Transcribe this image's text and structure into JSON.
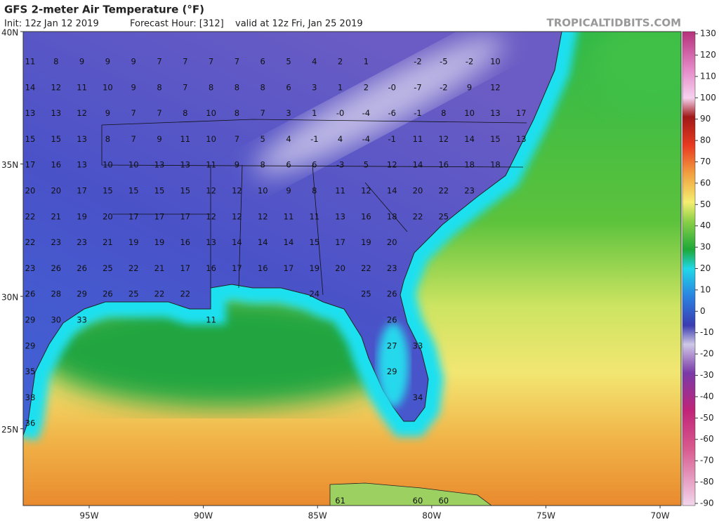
{
  "header": {
    "title": "GFS 2-meter Air Temperature (°F)",
    "init": "Init: 12z Jan 12 2019",
    "forecast_hour": "Forecast Hour: [312]",
    "valid": "valid at 12z Fri, Jan 25 2019",
    "watermark": "TROPICALTIDBITS.COM"
  },
  "map": {
    "lat_range": [
      22.1,
      40
    ],
    "lon_range": [
      -97.89,
      -69.08
    ],
    "lat_ticks": [
      {
        "value": 40,
        "label": "40N"
      },
      {
        "value": 35,
        "label": "35N"
      },
      {
        "value": 30,
        "label": "30N"
      },
      {
        "value": 25,
        "label": "25N"
      }
    ],
    "lon_ticks": [
      {
        "value": -95,
        "label": "95W"
      },
      {
        "value": -90,
        "label": "90W"
      },
      {
        "value": -85,
        "label": "85W"
      },
      {
        "value": -80,
        "label": "80W"
      },
      {
        "value": -75,
        "label": "75W"
      },
      {
        "value": -70,
        "label": "70W"
      }
    ],
    "labels": [
      [
        "11",
        "8",
        "9",
        "9",
        "9",
        "7",
        "7",
        "7",
        "7",
        "6",
        "5",
        "4",
        "2",
        "1",
        null,
        "-2",
        "-5",
        "-2",
        "10"
      ],
      [
        "14",
        "12",
        "11",
        "10",
        "9",
        "8",
        "7",
        "8",
        "8",
        "8",
        "6",
        "3",
        "1",
        "2",
        "-0",
        "-7",
        "-2",
        "9",
        "12"
      ],
      [
        "13",
        "13",
        "12",
        "9",
        "7",
        "7",
        "8",
        "10",
        "8",
        "7",
        "3",
        "1",
        "-0",
        "-4",
        "-6",
        "-1",
        "8",
        "10",
        "13",
        "17"
      ],
      [
        "15",
        "15",
        "13",
        "8",
        "7",
        "9",
        "11",
        "10",
        "7",
        "5",
        "4",
        "-1",
        "4",
        "-4",
        "-1",
        "11",
        "12",
        "14",
        "15",
        "13"
      ],
      [
        "17",
        "16",
        "13",
        "10",
        "10",
        "13",
        "13",
        "11",
        "9",
        "8",
        "6",
        "6",
        "-3",
        "5",
        "12",
        "14",
        "16",
        "18",
        "18"
      ],
      [
        "20",
        "20",
        "17",
        "15",
        "15",
        "15",
        "15",
        "12",
        "12",
        "10",
        "9",
        "8",
        "11",
        "12",
        "14",
        "20",
        "22",
        "23"
      ],
      [
        "22",
        "21",
        "19",
        "20",
        "17",
        "17",
        "17",
        "12",
        "12",
        "12",
        "11",
        "11",
        "13",
        "16",
        "18",
        "22",
        "25"
      ],
      [
        "22",
        "23",
        "23",
        "21",
        "19",
        "19",
        "16",
        "13",
        "14",
        "14",
        "14",
        "15",
        "17",
        "19",
        "20"
      ],
      [
        "23",
        "26",
        "26",
        "25",
        "22",
        "21",
        "17",
        "16",
        "17",
        "16",
        "17",
        "19",
        "20",
        "22",
        "23"
      ],
      [
        "26",
        "28",
        "29",
        "26",
        "25",
        "22",
        "22",
        null,
        null,
        null,
        null,
        "24",
        null,
        "25",
        "26"
      ],
      [
        "29",
        "30",
        "33",
        null,
        null,
        null,
        null,
        "11",
        null,
        null,
        null,
        null,
        null,
        null,
        "26"
      ],
      [
        "29",
        null,
        null,
        null,
        null,
        null,
        null,
        null,
        null,
        null,
        null,
        null,
        null,
        null,
        "27",
        "33"
      ],
      [
        "35",
        null,
        null,
        null,
        null,
        null,
        null,
        null,
        null,
        null,
        null,
        null,
        null,
        null,
        "29"
      ],
      [
        "38",
        null,
        null,
        null,
        null,
        null,
        null,
        null,
        null,
        null,
        null,
        null,
        null,
        null,
        null,
        "34"
      ],
      [
        "36"
      ],
      [],
      [],
      [
        null,
        null,
        null,
        null,
        null,
        null,
        null,
        null,
        null,
        null,
        null,
        null,
        "61",
        null,
        null,
        "60",
        "60"
      ]
    ]
  },
  "colorbar": {
    "range": [
      -91,
      131
    ],
    "ticks": [
      130,
      120,
      110,
      100,
      90,
      80,
      70,
      60,
      50,
      40,
      30,
      20,
      10,
      0,
      -10,
      -20,
      -30,
      -40,
      -50,
      -60,
      -70,
      -80,
      -90
    ]
  }
}
